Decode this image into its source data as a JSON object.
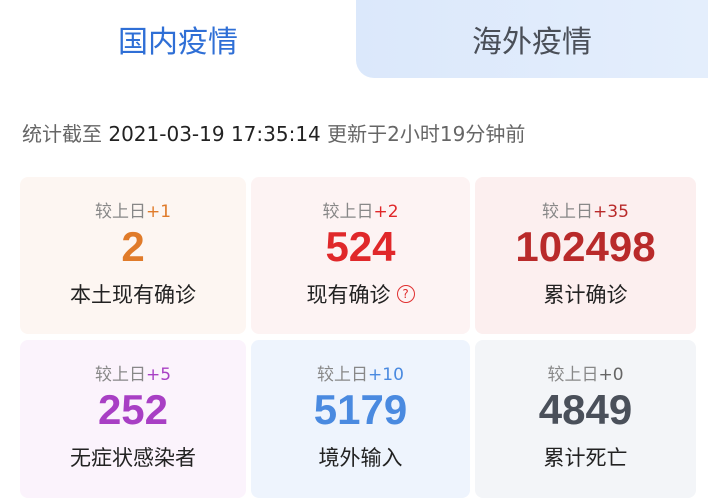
{
  "tabs": [
    {
      "label": "国内疫情",
      "active": true
    },
    {
      "label": "海外疫情",
      "active": false
    }
  ],
  "update": {
    "prefix": "统计截至",
    "time": "2021-03-19 17:35:14",
    "suffix": "更新于2小时19分钟前"
  },
  "cards": [
    {
      "delta_label": "较上日",
      "delta": "+1",
      "value": "2",
      "label": "本土现有确诊",
      "color": "#e07b2a",
      "bg": "#fdf6f2"
    },
    {
      "delta_label": "较上日",
      "delta": "+2",
      "value": "524",
      "label": "现有确诊",
      "color": "#e0282a",
      "bg": "#fdf3f3",
      "help_icon": "question-circle-icon"
    },
    {
      "delta_label": "较上日",
      "delta": "+35",
      "value": "102498",
      "label": "累计确诊",
      "color": "#b92a2a",
      "bg": "#fcefef"
    },
    {
      "delta_label": "较上日",
      "delta": "+5",
      "value": "252",
      "label": "无症状感染者",
      "color": "#a83fc4",
      "bg": "#fbf3fc"
    },
    {
      "delta_label": "较上日",
      "delta": "+10",
      "value": "5179",
      "label": "境外输入",
      "color": "#4a8ae0",
      "bg": "#eef4fd"
    },
    {
      "delta_label": "较上日",
      "delta": "+0",
      "value": "4849",
      "label": "累计死亡",
      "color": "#4a505a",
      "bg": "#f3f5f8"
    }
  ]
}
